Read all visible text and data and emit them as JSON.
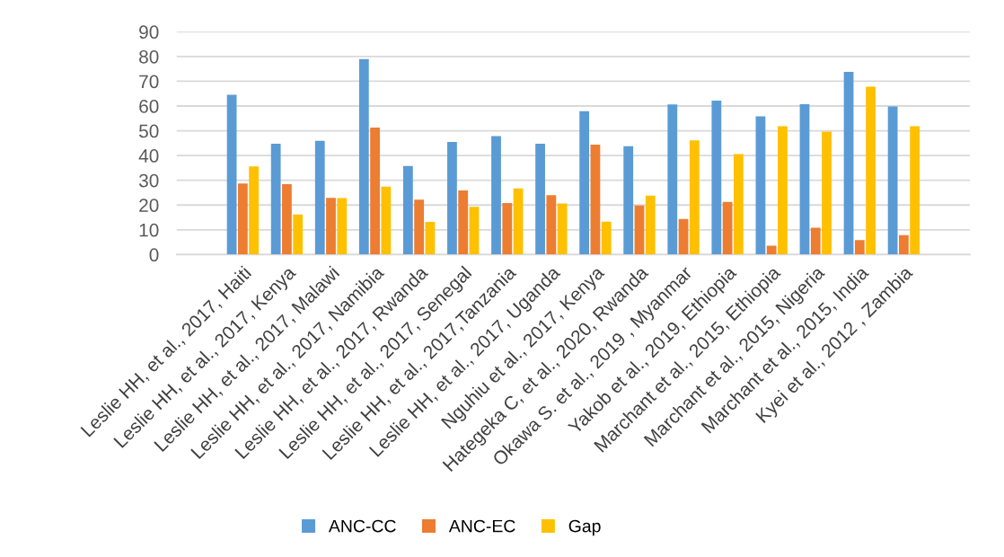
{
  "chart_data": {
    "type": "bar",
    "categories": [
      null,
      "Leslie HH, et al., 2017, Haiti",
      "Leslie HH, et al., 2017, Kenya",
      "Leslie HH, et al., 2017, Malawi",
      "Leslie HH, et al., 2017, Namibia",
      "Leslie HH, et al., 2017, Rwanda",
      "Leslie HH, et al., 2017, Senegal",
      "Leslie HH, et al., 2017,Tanzania",
      "Leslie HH, et al., 2017, Uganda",
      "Nguhiu et al., 2017, Kenya",
      "Hategeka C, et al., 2020, Rwanda",
      "Okawa S. et al., 2019 , Myanmar",
      "Yakob et al., 2019, Ethiopia",
      "Marchant et al., 2015, Ethiopia",
      "Marchant et al., 2015, Nigeria",
      "Marchant et al., 2015, India",
      "Kyei et al., 2012 , Zambia",
      null
    ],
    "series": [
      {
        "name": "ANC-CC",
        "color": "#5b9bd5",
        "values": [
          null,
          64.5,
          44.8,
          45.9,
          79.0,
          35.8,
          45.5,
          47.8,
          44.8,
          57.9,
          43.8,
          60.6,
          62.2,
          55.8,
          60.7,
          73.8,
          59.8,
          null
        ]
      },
      {
        "name": "ANC-EC",
        "color": "#ed7d31",
        "values": [
          null,
          28.7,
          28.4,
          22.9,
          51.3,
          22.2,
          25.9,
          20.8,
          24.0,
          44.4,
          19.8,
          14.4,
          21.3,
          3.6,
          10.8,
          5.8,
          7.8,
          null
        ]
      },
      {
        "name": "Gap",
        "color": "#ffc000",
        "values": [
          null,
          35.6,
          16.2,
          22.8,
          27.4,
          13.2,
          19.3,
          26.7,
          20.6,
          13.3,
          23.8,
          46.1,
          40.6,
          51.8,
          49.7,
          67.8,
          51.8,
          null
        ]
      }
    ],
    "ylim": [
      0,
      90
    ],
    "yticks": [
      0,
      10,
      20,
      30,
      40,
      50,
      60,
      70,
      80,
      90
    ],
    "grid": "y",
    "legend": "bottom"
  }
}
